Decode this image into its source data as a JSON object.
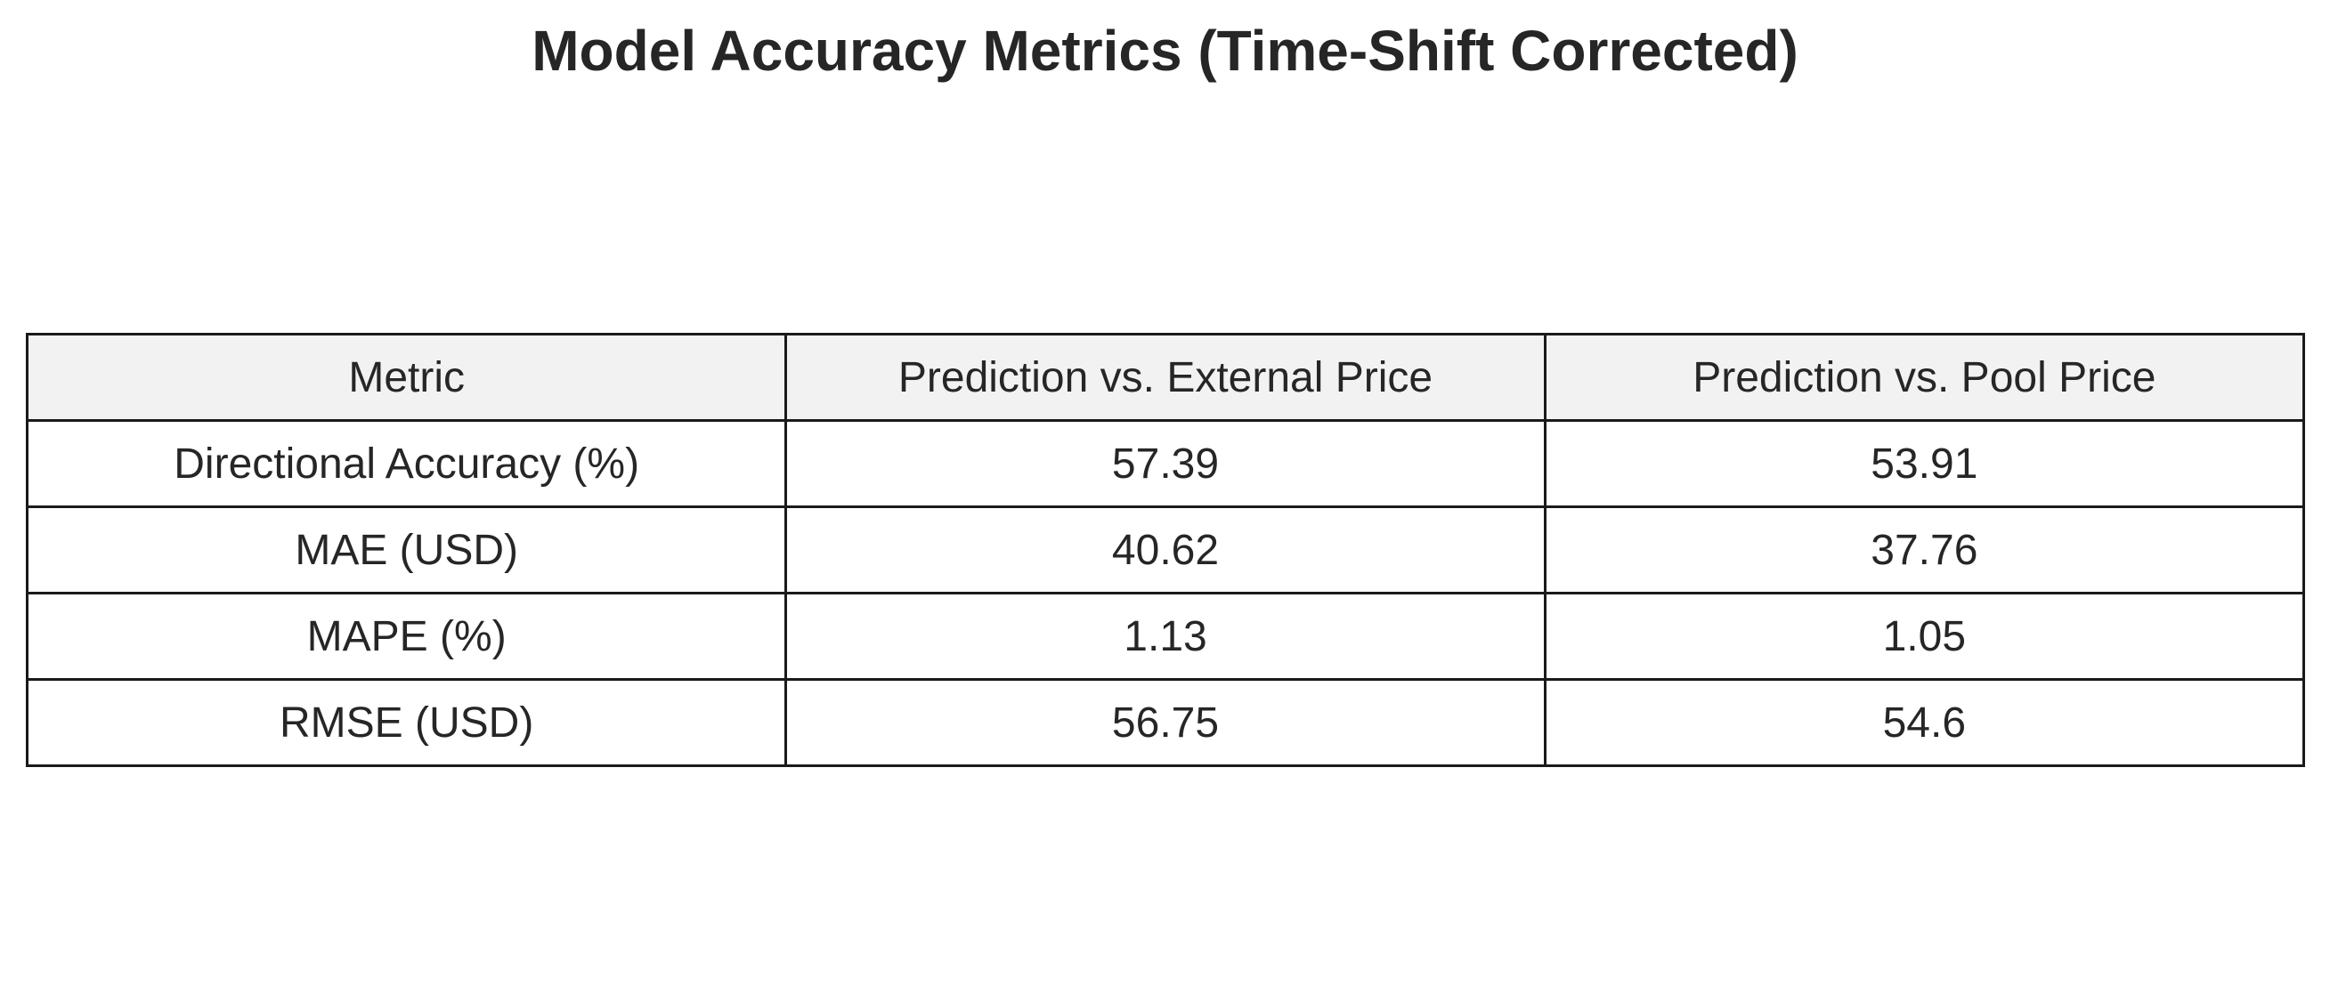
{
  "chart_data": {
    "type": "table",
    "title": "Model Accuracy Metrics (Time-Shift Corrected)",
    "columns": [
      "Metric",
      "Prediction vs. External Price",
      "Prediction vs. Pool Price"
    ],
    "rows": [
      [
        "Directional Accuracy (%)",
        "57.39",
        "53.91"
      ],
      [
        "MAE (USD)",
        "40.62",
        "37.76"
      ],
      [
        "MAPE (%)",
        "1.13",
        "1.05"
      ],
      [
        "RMSE (USD)",
        "56.75",
        "54.6"
      ]
    ],
    "header_background": "#f2f2f2",
    "border_color": "#1a1a1a"
  }
}
